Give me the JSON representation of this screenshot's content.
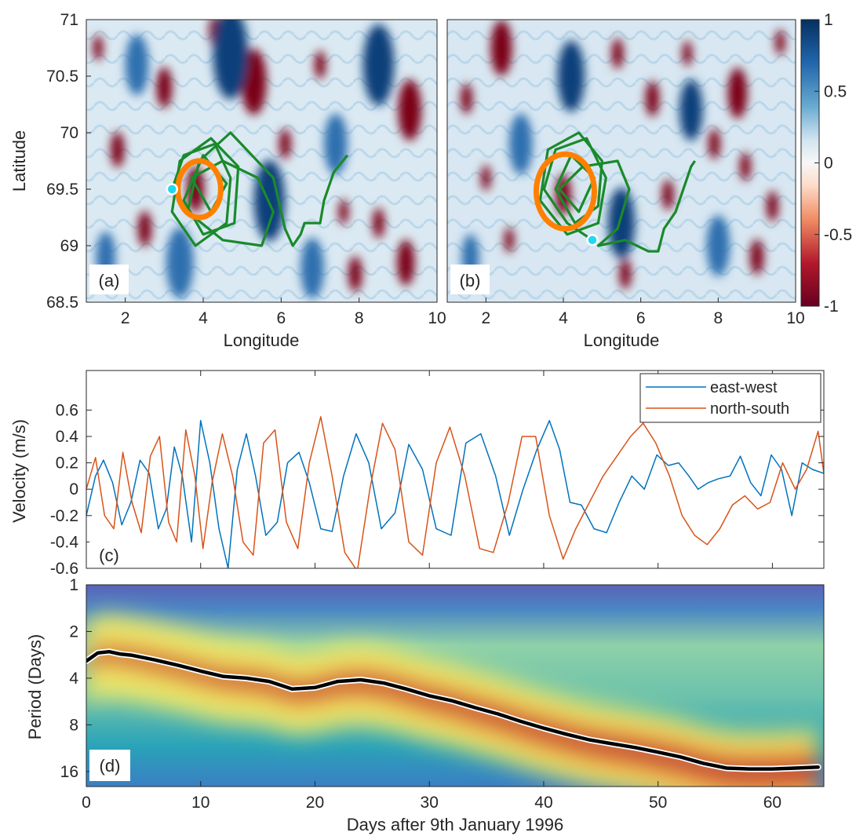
{
  "chart_data": [
    {
      "type": "heatmap",
      "panel_label": "(a)",
      "xlabel": "Longitude",
      "ylabel": "Latitude",
      "xlim": [
        1,
        10
      ],
      "ylim": [
        68.5,
        71
      ],
      "xticks": [
        2,
        4,
        6,
        8,
        10
      ],
      "yticks": [
        68.5,
        69,
        69.5,
        70,
        70.5,
        71
      ],
      "colormap": "red-white-blue",
      "eddies": [
        {
          "lon": 3.8,
          "lat": 69.5,
          "r": 0.45,
          "v": -1
        },
        {
          "lon": 5.3,
          "lat": 70.45,
          "r": 0.65,
          "v": -1
        },
        {
          "lon": 9.3,
          "lat": 70.2,
          "r": 0.6,
          "v": -1
        },
        {
          "lon": 3.0,
          "lat": 70.4,
          "r": 0.4,
          "v": -1
        },
        {
          "lon": 1.8,
          "lat": 69.85,
          "r": 0.35,
          "v": -1
        },
        {
          "lon": 2.5,
          "lat": 69.15,
          "r": 0.35,
          "v": -1
        },
        {
          "lon": 6.1,
          "lat": 69.9,
          "r": 0.3,
          "v": -1
        },
        {
          "lon": 8.5,
          "lat": 69.2,
          "r": 0.3,
          "v": -1
        },
        {
          "lon": 7.6,
          "lat": 69.3,
          "r": 0.25,
          "v": -1
        },
        {
          "lon": 4.3,
          "lat": 70.9,
          "r": 0.3,
          "v": -1
        },
        {
          "lon": 7.0,
          "lat": 70.6,
          "r": 0.28,
          "v": -1
        },
        {
          "lon": 1.3,
          "lat": 70.75,
          "r": 0.25,
          "v": -1
        },
        {
          "lon": 9.2,
          "lat": 68.85,
          "r": 0.45,
          "v": -1
        },
        {
          "lon": 7.9,
          "lat": 68.75,
          "r": 0.35,
          "v": -1
        },
        {
          "lon": 4.7,
          "lat": 70.7,
          "r": 0.9,
          "v": 1
        },
        {
          "lon": 8.5,
          "lat": 70.6,
          "r": 0.8,
          "v": 1
        },
        {
          "lon": 5.7,
          "lat": 69.4,
          "r": 0.8,
          "v": 1
        },
        {
          "lon": 3.4,
          "lat": 68.85,
          "r": 0.7,
          "v": 0.8
        },
        {
          "lon": 7.4,
          "lat": 69.9,
          "r": 0.6,
          "v": 0.8
        },
        {
          "lon": 1.5,
          "lat": 68.9,
          "r": 0.5,
          "v": 0.7
        },
        {
          "lon": 6.8,
          "lat": 68.8,
          "r": 0.6,
          "v": 0.7
        },
        {
          "lon": 2.3,
          "lat": 70.6,
          "r": 0.6,
          "v": 0.7
        }
      ],
      "loop_center": [
        3.9,
        69.5
      ],
      "loop_radius": [
        0.55,
        0.25
      ],
      "marker": [
        3.2,
        69.5
      ],
      "track": [
        [
          3.2,
          69.5
        ],
        [
          3.5,
          69.8
        ],
        [
          4.3,
          69.9
        ],
        [
          4.7,
          69.6
        ],
        [
          4.6,
          69.2
        ],
        [
          3.8,
          69.0
        ],
        [
          3.2,
          69.3
        ],
        [
          3.4,
          69.75
        ],
        [
          4.2,
          69.95
        ],
        [
          4.9,
          69.7
        ],
        [
          4.8,
          69.2
        ],
        [
          4.0,
          69.1
        ],
        [
          3.5,
          69.4
        ],
        [
          4.0,
          69.8
        ],
        [
          4.6,
          69.55
        ],
        [
          4.2,
          69.3
        ],
        [
          3.7,
          69.6
        ],
        [
          4.5,
          69.75
        ],
        [
          5.4,
          69.6
        ],
        [
          5.8,
          69.3
        ],
        [
          5.5,
          69.0
        ],
        [
          4.5,
          69.05
        ],
        [
          3.6,
          69.3
        ],
        [
          3.9,
          69.75
        ],
        [
          4.7,
          70.0
        ],
        [
          5.8,
          69.6
        ],
        [
          6.1,
          69.15
        ],
        [
          6.3,
          69.0
        ],
        [
          6.5,
          69.1
        ],
        [
          6.6,
          69.2
        ],
        [
          7.0,
          69.2
        ],
        [
          7.1,
          69.4
        ],
        [
          7.35,
          69.65
        ],
        [
          7.7,
          69.8
        ]
      ]
    },
    {
      "type": "heatmap",
      "panel_label": "(b)",
      "xlabel": "Longitude",
      "xlim": [
        1,
        10
      ],
      "ylim": [
        68.5,
        71
      ],
      "xticks": [
        2,
        4,
        6,
        8,
        10
      ],
      "colormap": "red-white-blue",
      "colorbar_ticks": [
        "1",
        "0.5",
        "0",
        "-0.5",
        "-1"
      ],
      "colorbar_values": [
        1,
        0.5,
        0,
        -0.5,
        -1
      ],
      "eddies": [
        {
          "lon": 4.0,
          "lat": 69.45,
          "r": 0.4,
          "v": -1
        },
        {
          "lon": 2.4,
          "lat": 70.75,
          "r": 0.55,
          "v": -1
        },
        {
          "lon": 8.5,
          "lat": 70.35,
          "r": 0.5,
          "v": -1
        },
        {
          "lon": 6.3,
          "lat": 70.3,
          "r": 0.35,
          "v": -1
        },
        {
          "lon": 5.4,
          "lat": 70.7,
          "r": 0.3,
          "v": -1
        },
        {
          "lon": 1.5,
          "lat": 70.3,
          "r": 0.3,
          "v": -1
        },
        {
          "lon": 2.0,
          "lat": 69.6,
          "r": 0.25,
          "v": -1
        },
        {
          "lon": 7.9,
          "lat": 69.9,
          "r": 0.3,
          "v": -1
        },
        {
          "lon": 8.7,
          "lat": 69.7,
          "r": 0.28,
          "v": -1
        },
        {
          "lon": 9.4,
          "lat": 69.35,
          "r": 0.3,
          "v": -1
        },
        {
          "lon": 9.0,
          "lat": 68.9,
          "r": 0.35,
          "v": -1
        },
        {
          "lon": 6.7,
          "lat": 69.45,
          "r": 0.3,
          "v": -1
        },
        {
          "lon": 2.6,
          "lat": 69.05,
          "r": 0.25,
          "v": -1
        },
        {
          "lon": 5.6,
          "lat": 68.75,
          "r": 0.3,
          "v": -1
        },
        {
          "lon": 7.2,
          "lat": 70.7,
          "r": 0.25,
          "v": -1
        },
        {
          "lon": 9.6,
          "lat": 70.8,
          "r": 0.25,
          "v": -1
        },
        {
          "lon": 4.2,
          "lat": 70.5,
          "r": 0.7,
          "v": 1
        },
        {
          "lon": 7.3,
          "lat": 70.2,
          "r": 0.6,
          "v": 1
        },
        {
          "lon": 5.5,
          "lat": 69.2,
          "r": 0.7,
          "v": 1
        },
        {
          "lon": 2.9,
          "lat": 69.9,
          "r": 0.6,
          "v": 0.8
        },
        {
          "lon": 8.0,
          "lat": 69.0,
          "r": 0.6,
          "v": 0.8
        },
        {
          "lon": 1.6,
          "lat": 68.9,
          "r": 0.45,
          "v": 0.7
        }
      ],
      "loop_center": [
        4.05,
        69.48
      ],
      "loop_radius": [
        0.75,
        0.33
      ],
      "marker": [
        4.75,
        69.05
      ],
      "track": [
        [
          4.75,
          69.05
        ],
        [
          4.1,
          69.2
        ],
        [
          3.5,
          69.5
        ],
        [
          3.8,
          69.85
        ],
        [
          4.6,
          69.95
        ],
        [
          5.1,
          69.6
        ],
        [
          4.9,
          69.2
        ],
        [
          4.1,
          69.1
        ],
        [
          3.4,
          69.4
        ],
        [
          3.6,
          69.85
        ],
        [
          4.4,
          70.0
        ],
        [
          5.0,
          69.75
        ],
        [
          4.9,
          69.35
        ],
        [
          4.3,
          69.2
        ],
        [
          3.8,
          69.5
        ],
        [
          4.2,
          69.8
        ],
        [
          4.8,
          69.6
        ],
        [
          4.4,
          69.3
        ],
        [
          3.9,
          69.5
        ],
        [
          4.5,
          69.7
        ],
        [
          5.4,
          69.75
        ],
        [
          5.7,
          69.5
        ],
        [
          5.4,
          69.15
        ],
        [
          4.9,
          69.0
        ],
        [
          5.6,
          69.05
        ],
        [
          6.2,
          68.95
        ],
        [
          6.45,
          68.95
        ],
        [
          6.6,
          69.15
        ],
        [
          6.9,
          69.3
        ],
        [
          7.1,
          69.5
        ],
        [
          7.3,
          69.7
        ],
        [
          7.4,
          69.75
        ]
      ]
    },
    {
      "type": "line",
      "panel_label": "(c)",
      "ylabel": "Velocity (m/s)",
      "xlim": [
        0,
        64.5
      ],
      "ylim": [
        -0.6,
        0.9
      ],
      "xticks": [
        0,
        10,
        20,
        30,
        40,
        50,
        60
      ],
      "yticks": [
        -0.6,
        -0.4,
        -0.2,
        0,
        0.2,
        0.4,
        0.6
      ],
      "ytick_labels": [
        "-0.6",
        "-0.4",
        "-0.2",
        "0",
        "0.2",
        "0.4",
        "0.6"
      ],
      "legend_position": "top-right",
      "series": [
        {
          "name": "east-west",
          "color": "#0072BD",
          "x": [
            0,
            0.8,
            1.5,
            2.3,
            3.1,
            3.9,
            4.7,
            5.5,
            6.3,
            7.0,
            7.7,
            8.4,
            9.2,
            10.0,
            10.8,
            11.6,
            12.4,
            13.2,
            14.0,
            14.8,
            15.7,
            16.7,
            17.6,
            18.6,
            19.5,
            20.5,
            21.5,
            22.5,
            23.6,
            24.7,
            25.8,
            27.0,
            28.2,
            29.4,
            30.6,
            31.9,
            33.2,
            34.5,
            35.8,
            37.0,
            38.2,
            39.4,
            40.5,
            41.4,
            42.3,
            43.3,
            44.4,
            45.5,
            46.6,
            47.7,
            48.8,
            49.9,
            50.9,
            51.8,
            52.7,
            53.5,
            54.4,
            55.3,
            56.3,
            57.2,
            58.1,
            59.0,
            59.9,
            60.8,
            61.7,
            62.6,
            63.5,
            64.5
          ],
          "values": [
            -0.2,
            0.1,
            0.22,
            0.05,
            -0.27,
            -0.1,
            0.22,
            0.12,
            -0.3,
            -0.15,
            0.32,
            0.1,
            -0.4,
            0.52,
            0.2,
            -0.3,
            -0.6,
            0.15,
            0.42,
            0.1,
            -0.35,
            -0.25,
            0.2,
            0.28,
            0.05,
            -0.3,
            -0.32,
            0.1,
            0.42,
            0.2,
            -0.3,
            -0.18,
            0.34,
            0.15,
            -0.3,
            -0.35,
            0.35,
            0.42,
            0.1,
            -0.35,
            0.0,
            0.3,
            0.52,
            0.3,
            -0.1,
            -0.12,
            -0.3,
            -0.33,
            -0.1,
            0.1,
            0.0,
            0.26,
            0.18,
            0.2,
            0.1,
            0.0,
            0.05,
            0.08,
            0.1,
            0.25,
            0.05,
            -0.05,
            0.26,
            0.15,
            -0.2,
            0.2,
            0.15,
            0.12
          ]
        },
        {
          "name": "north-south",
          "color": "#D95319",
          "x": [
            0,
            0.8,
            1.6,
            2.4,
            3.2,
            4.0,
            4.8,
            5.6,
            6.4,
            7.2,
            7.9,
            8.7,
            9.5,
            10.2,
            11.0,
            11.9,
            12.8,
            13.7,
            14.6,
            15.5,
            16.5,
            17.5,
            18.5,
            19.5,
            20.5,
            21.5,
            22.6,
            23.7,
            24.8,
            25.9,
            27.0,
            28.2,
            29.4,
            30.6,
            31.8,
            33.1,
            34.4,
            35.6,
            36.9,
            38.1,
            39.3,
            40.5,
            41.7,
            42.8,
            44.0,
            45.2,
            46.4,
            47.6,
            48.7,
            49.8,
            51.0,
            52.1,
            53.2,
            54.3,
            55.4,
            56.5,
            57.6,
            58.7,
            59.8,
            60.9,
            62.0,
            63.0,
            64.0,
            64.5
          ],
          "values": [
            0.0,
            0.24,
            -0.2,
            -0.3,
            0.28,
            -0.1,
            -0.33,
            0.25,
            0.4,
            -0.25,
            -0.4,
            0.45,
            0.1,
            -0.45,
            0.05,
            0.42,
            0.1,
            -0.4,
            -0.5,
            0.35,
            0.45,
            -0.25,
            -0.45,
            0.2,
            0.55,
            0.1,
            -0.48,
            -0.62,
            0.0,
            0.5,
            0.3,
            -0.4,
            -0.5,
            0.2,
            0.47,
            0.1,
            -0.45,
            -0.48,
            -0.1,
            0.4,
            0.4,
            -0.2,
            -0.53,
            -0.3,
            -0.1,
            0.1,
            0.25,
            0.4,
            0.5,
            0.35,
            0.1,
            -0.2,
            -0.35,
            -0.42,
            -0.3,
            -0.12,
            -0.05,
            -0.15,
            -0.1,
            0.2,
            0.0,
            0.15,
            0.44,
            0.12
          ]
        }
      ]
    },
    {
      "type": "heatmap",
      "panel_label": "(d)",
      "xlabel": "Days after 9th January 1996",
      "ylabel": "Period (Days)",
      "xlim": [
        0,
        64.5
      ],
      "ylim": [
        1,
        20
      ],
      "yscale": "log",
      "xticks": [
        0,
        10,
        20,
        30,
        40,
        50,
        60
      ],
      "yticks": [
        1,
        2,
        4,
        8,
        16
      ],
      "colormap": "parula-like (blue-green-yellow-red)",
      "ridge": {
        "x": [
          0,
          1,
          2,
          3,
          4,
          6,
          8,
          10,
          12,
          14,
          16,
          18,
          20,
          22,
          24,
          26,
          28,
          30,
          32,
          34,
          36,
          38,
          40,
          42,
          44,
          46,
          48,
          50,
          52,
          54,
          56,
          58,
          60,
          62,
          64
        ],
        "period": [
          3.1,
          2.75,
          2.7,
          2.8,
          2.85,
          3.05,
          3.3,
          3.6,
          3.9,
          4.0,
          4.2,
          4.7,
          4.6,
          4.2,
          4.1,
          4.3,
          4.7,
          5.2,
          5.6,
          6.2,
          6.8,
          7.6,
          8.4,
          9.2,
          10.0,
          10.6,
          11.2,
          12.0,
          12.9,
          14.2,
          15.2,
          15.4,
          15.4,
          15.2,
          15.0
        ]
      }
    }
  ]
}
